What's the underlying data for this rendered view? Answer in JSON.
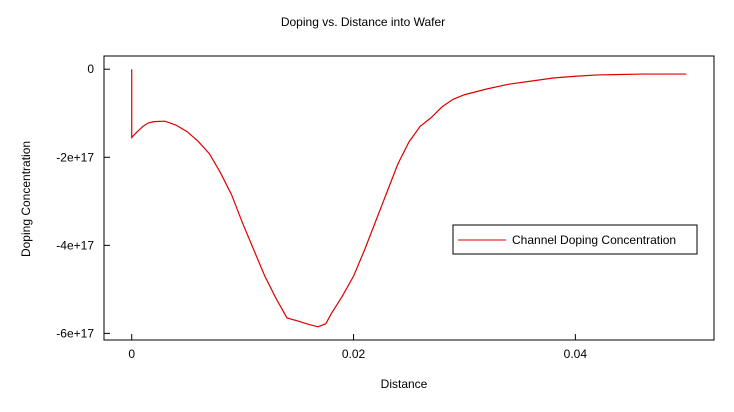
{
  "chart_data": {
    "type": "line",
    "title": "Doping vs. Distance into Wafer",
    "xlabel": "Distance",
    "ylabel": "Doping Concentration",
    "xlim": [
      -0.0025,
      0.0525
    ],
    "ylim": [
      -6.15e+17,
      3e+16
    ],
    "x_ticks": [
      0,
      0.02,
      0.04
    ],
    "x_tick_labels": [
      "0",
      "0.02",
      "0.04"
    ],
    "y_ticks": [
      0,
      -2e+17,
      -4e+17,
      -6e+17
    ],
    "y_tick_labels": [
      "0",
      "-2e+17",
      "-4e+17",
      "-6e+17"
    ],
    "grid": false,
    "legend_position": "right",
    "series": [
      {
        "name": "Channel Doping Concentration",
        "color": "#dd0000",
        "x": [
          0,
          0,
          0.0005,
          0.001,
          0.0015,
          0.002,
          0.003,
          0.004,
          0.005,
          0.006,
          0.007,
          0.008,
          0.009,
          0.01,
          0.011,
          0.012,
          0.013,
          0.014,
          0.015,
          0.016,
          0.0168,
          0.0175,
          0.018,
          0.019,
          0.02,
          0.021,
          0.022,
          0.023,
          0.024,
          0.025,
          0.026,
          0.027,
          0.028,
          0.029,
          0.03,
          0.032,
          0.034,
          0.036,
          0.038,
          0.04,
          0.042,
          0.044,
          0.046,
          0.048,
          0.05
        ],
        "y": [
          0,
          -1.55e+17,
          -1.42e+17,
          -1.3e+17,
          -1.22e+17,
          -1.19e+17,
          -1.18e+17,
          -1.27e+17,
          -1.42e+17,
          -1.64e+17,
          -1.92e+17,
          -2.35e+17,
          -2.85e+17,
          -3.5e+17,
          -4.1e+17,
          -4.7e+17,
          -5.2e+17,
          -5.65e+17,
          -5.72e+17,
          -5.8e+17,
          -5.85e+17,
          -5.78e+17,
          -5.55e+17,
          -5.15e+17,
          -4.7e+17,
          -4.1e+17,
          -3.45e+17,
          -2.8e+17,
          -2.15e+17,
          -1.65e+17,
          -1.3e+17,
          -1.1e+17,
          -8.5e+16,
          -6.8e+16,
          -5.8e+16,
          -4.5e+16,
          -3.4e+16,
          -2.7e+16,
          -2e+16,
          -1.6e+16,
          -1.3e+16,
          -1.2e+16,
          -1.1e+16,
          -1.1e+16,
          -1.1e+16
        ]
      }
    ]
  }
}
